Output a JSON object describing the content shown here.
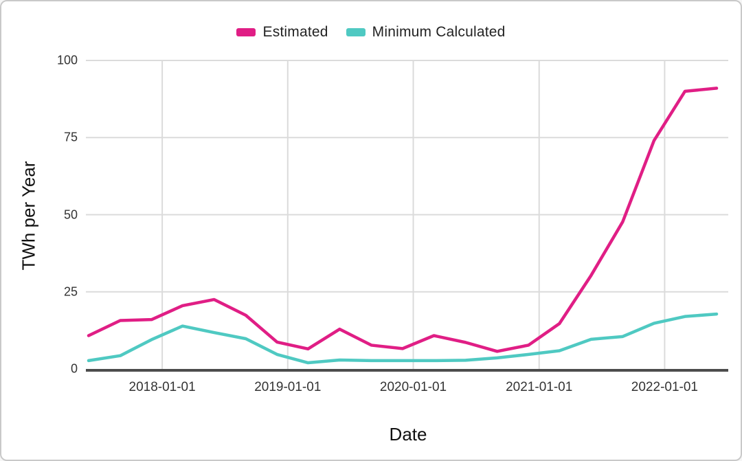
{
  "chart_data": {
    "type": "line",
    "x": [
      "2017-06-01",
      "2017-09-01",
      "2017-12-01",
      "2018-03-01",
      "2018-06-01",
      "2018-09-01",
      "2018-12-01",
      "2019-03-01",
      "2019-06-01",
      "2019-09-01",
      "2019-12-01",
      "2020-03-01",
      "2020-06-01",
      "2020-09-01",
      "2020-12-01",
      "2021-03-01",
      "2021-06-01",
      "2021-09-01",
      "2021-12-01",
      "2022-03-01",
      "2022-06-01"
    ],
    "series": [
      {
        "name": "Estimated",
        "color": "#E01E85",
        "values": [
          10.8,
          15.7,
          16.0,
          20.5,
          22.5,
          17.4,
          8.7,
          6.5,
          12.9,
          7.7,
          6.6,
          10.8,
          8.6,
          5.7,
          7.7,
          14.7,
          30.3,
          47.7,
          74.0,
          90.0,
          91.0
        ]
      },
      {
        "name": "Minimum Calculated",
        "color": "#4FC9C2",
        "values": [
          2.7,
          4.3,
          9.5,
          13.9,
          11.8,
          9.8,
          4.7,
          2.0,
          2.9,
          2.7,
          2.7,
          2.7,
          2.8,
          3.6,
          4.7,
          5.9,
          9.6,
          10.5,
          14.8,
          17.0,
          17.8
        ]
      }
    ],
    "title": "",
    "xlabel": "Date",
    "ylabel": "TWh per Year",
    "ylim": [
      0,
      100
    ],
    "yticks": [
      0,
      25,
      50,
      75,
      100
    ],
    "xticks": [
      "2018-01-01",
      "2019-01-01",
      "2020-01-01",
      "2021-01-01",
      "2022-01-01"
    ],
    "x_domain": [
      "2017-06-01",
      "2022-06-01"
    ],
    "grid": true,
    "legend_position": "top-center"
  },
  "styles": {
    "grid_color": "#DBDBDB",
    "axis_line_color": "#4D4D4D",
    "tick_label_color": "#333333",
    "background": "#FFFFFF"
  }
}
